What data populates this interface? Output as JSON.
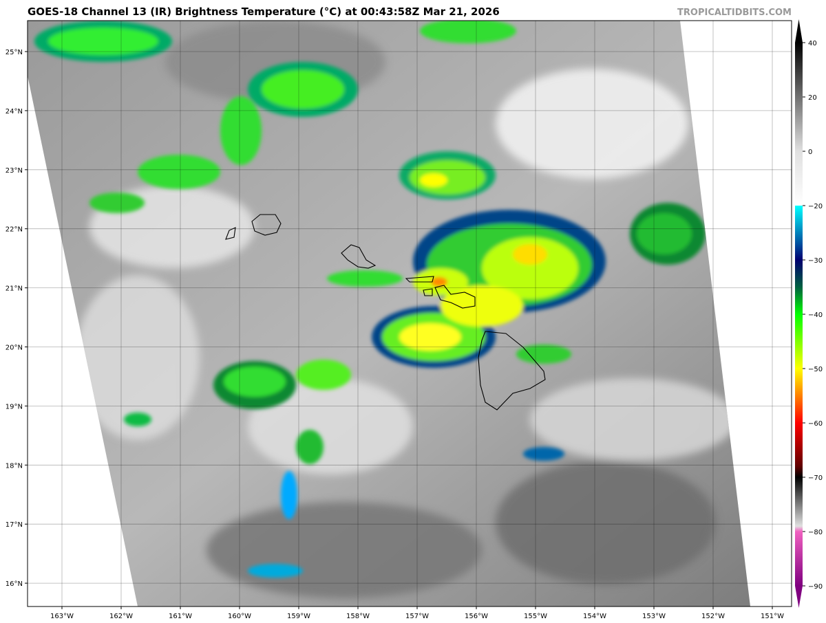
{
  "header": {
    "title": "GOES-18 Channel 13 (IR) Brightness Temperature (°C) at 00:43:58Z Mar 21, 2026",
    "brand": "TROPICALTIDBITS.COM"
  },
  "map": {
    "lon_ticks": [
      "163°W",
      "162°W",
      "161°W",
      "160°W",
      "159°W",
      "158°W",
      "157°W",
      "156°W",
      "155°W",
      "154°W",
      "153°W",
      "152°W",
      "151°W"
    ],
    "lat_ticks": [
      "25°N",
      "24°N",
      "23°N",
      "22°N",
      "21°N",
      "20°N",
      "19°N",
      "18°N",
      "17°N",
      "16°N"
    ],
    "lon_values": [
      -163,
      -162,
      -161,
      -160,
      -159,
      -158,
      -157,
      -156,
      -155,
      -154,
      -153,
      -152,
      -151
    ],
    "lat_values": [
      25,
      24,
      23,
      22,
      21,
      20,
      19,
      18,
      17,
      16
    ],
    "grid": true,
    "islands": [
      "Niihau",
      "Kauai",
      "Oahu",
      "Molokai",
      "Lanai",
      "Maui",
      "Hawaii"
    ]
  },
  "colorbar": {
    "labels": [
      "40",
      "20",
      "0",
      "−20",
      "−30",
      "−40",
      "−50",
      "−60",
      "−70",
      "−80",
      "−90"
    ],
    "values": [
      40,
      20,
      0,
      -20,
      -30,
      -40,
      -50,
      -60,
      -70,
      -80,
      -90
    ],
    "colors": {
      "warm": "#000000",
      "zero": "#e0e0e0",
      "cyan": "#00ffff",
      "blue": "#0050a0",
      "navy": "#000070",
      "darkgreen": "#006040",
      "green": "#00ff00",
      "yellow": "#ffff00",
      "orange": "#ff8000",
      "red": "#ff0000",
      "darkred": "#600000",
      "pink": "#f060c0",
      "purple": "#800080"
    }
  }
}
